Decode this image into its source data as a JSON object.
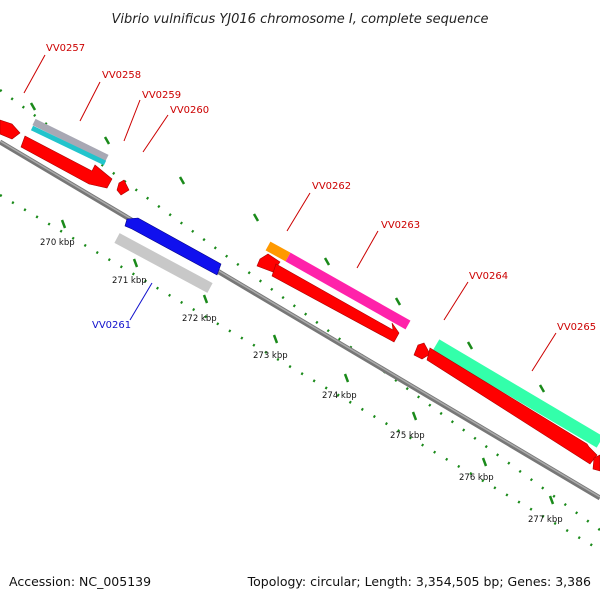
{
  "title": "Vibrio vulnificus YJ016 chromosome I, complete sequence",
  "footer": {
    "accession": "Accession: NC_005139",
    "topology": "Topology: circular; Length: 3,354,505 bp; Genes: 3,386"
  },
  "ticks": [
    "270 kbp",
    "271 kbp",
    "272 kbp",
    "273 kbp",
    "274 kbp",
    "275 kbp",
    "276 kbp",
    "277 kbp"
  ],
  "genes": [
    {
      "id": "VV0257",
      "strand": "forward",
      "color": "#ff0000",
      "label_color": "#cc0000"
    },
    {
      "id": "VV0258",
      "strand": "forward",
      "color": "#ff0000",
      "label_color": "#cc0000"
    },
    {
      "id": "VV0259",
      "strand": "forward",
      "color": "#ff0000",
      "label_color": "#cc0000"
    },
    {
      "id": "VV0260",
      "strand": "forward",
      "color": "#ff0000",
      "label_color": "#cc0000"
    },
    {
      "id": "VV0261",
      "strand": "reverse",
      "color": "#1010ee",
      "label_color": "#1010cc"
    },
    {
      "id": "VV0262",
      "strand": "forward",
      "color": "#ff0000",
      "label_color": "#cc0000"
    },
    {
      "id": "VV0263",
      "strand": "forward",
      "color": "#ff0000",
      "label_color": "#cc0000"
    },
    {
      "id": "VV0264",
      "strand": "forward",
      "color": "#ff0000",
      "label_color": "#cc0000"
    },
    {
      "id": "VV0265",
      "strand": "forward",
      "color": "#ff0000",
      "label_color": "#cc0000"
    }
  ],
  "colors": {
    "backbone": "#888888",
    "ticks": "#1a8a1a",
    "cog_gray": "#a8a8b4",
    "cog_cyan": "#22c4cc",
    "cog_orange": "#ff9900",
    "cog_magenta": "#ff22aa",
    "cog_mint": "#33ffaa",
    "cog_silver": "#c8c8c8"
  }
}
